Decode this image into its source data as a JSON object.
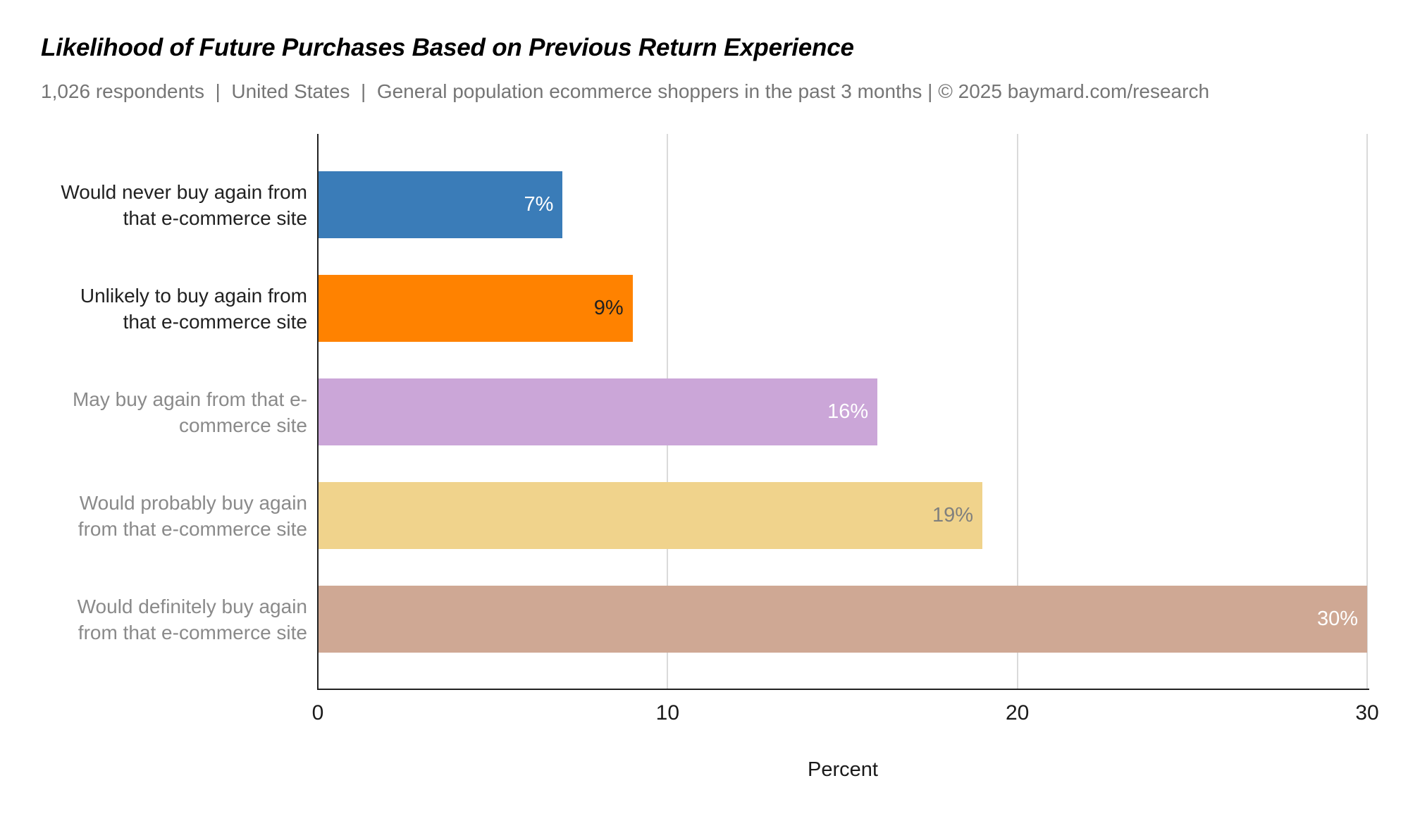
{
  "header": {
    "title": "Likelihood of Future Purchases Based on Previous Return Experience",
    "subtitle": "1,026 respondents  |  United States  |  General population ecommerce shoppers in the past 3 months | © 2025 baymard.com/research"
  },
  "chart_data": {
    "type": "bar",
    "orientation": "horizontal",
    "title": "Likelihood of Future Purchases Based on Previous Return Experience",
    "subtitle": "1,026 respondents | United States | General population ecommerce shoppers in the past 3 months | © 2025 baymard.com/research",
    "categories": [
      "Would never buy again from that e-commerce site",
      "Unlikely to buy again from that e-commerce site",
      "May buy again from that e-commerce site",
      "Would probably buy again from that e-commerce site",
      "Would definitely buy again from that e-commerce site"
    ],
    "category_lines": [
      [
        "Would never buy again from",
        "that e-commerce site"
      ],
      [
        "Unlikely to buy again from",
        "that e-commerce site"
      ],
      [
        "May buy again from that e-",
        "commerce site"
      ],
      [
        "Would probably buy again",
        "from that e-commerce site"
      ],
      [
        "Would definitely buy again",
        "from that e-commerce site"
      ]
    ],
    "values": [
      7,
      9,
      16,
      19,
      30
    ],
    "value_labels": [
      "7%",
      "9%",
      "16%",
      "19%",
      "30%"
    ],
    "bar_colors": [
      "#3A7CB8",
      "#FF8200",
      "#CBA6D8",
      "#F0D38C",
      "#CFA894"
    ],
    "value_label_colors": [
      "#ffffff",
      "#212121",
      "#ffffff",
      "#80807E",
      "#ffffff"
    ],
    "category_label_colors": [
      "#212121",
      "#212121",
      "#8A8A8A",
      "#8A8A8A",
      "#8A8A8A"
    ],
    "xlabel": "Percent",
    "x_ticks": [
      "0",
      "10",
      "20",
      "30"
    ],
    "x_tick_values": [
      0,
      10,
      20,
      30
    ],
    "xlim": [
      0,
      30
    ],
    "grid": true,
    "legend": "none",
    "gridline_color": "#dadada",
    "axis_line_color": "#212121"
  }
}
